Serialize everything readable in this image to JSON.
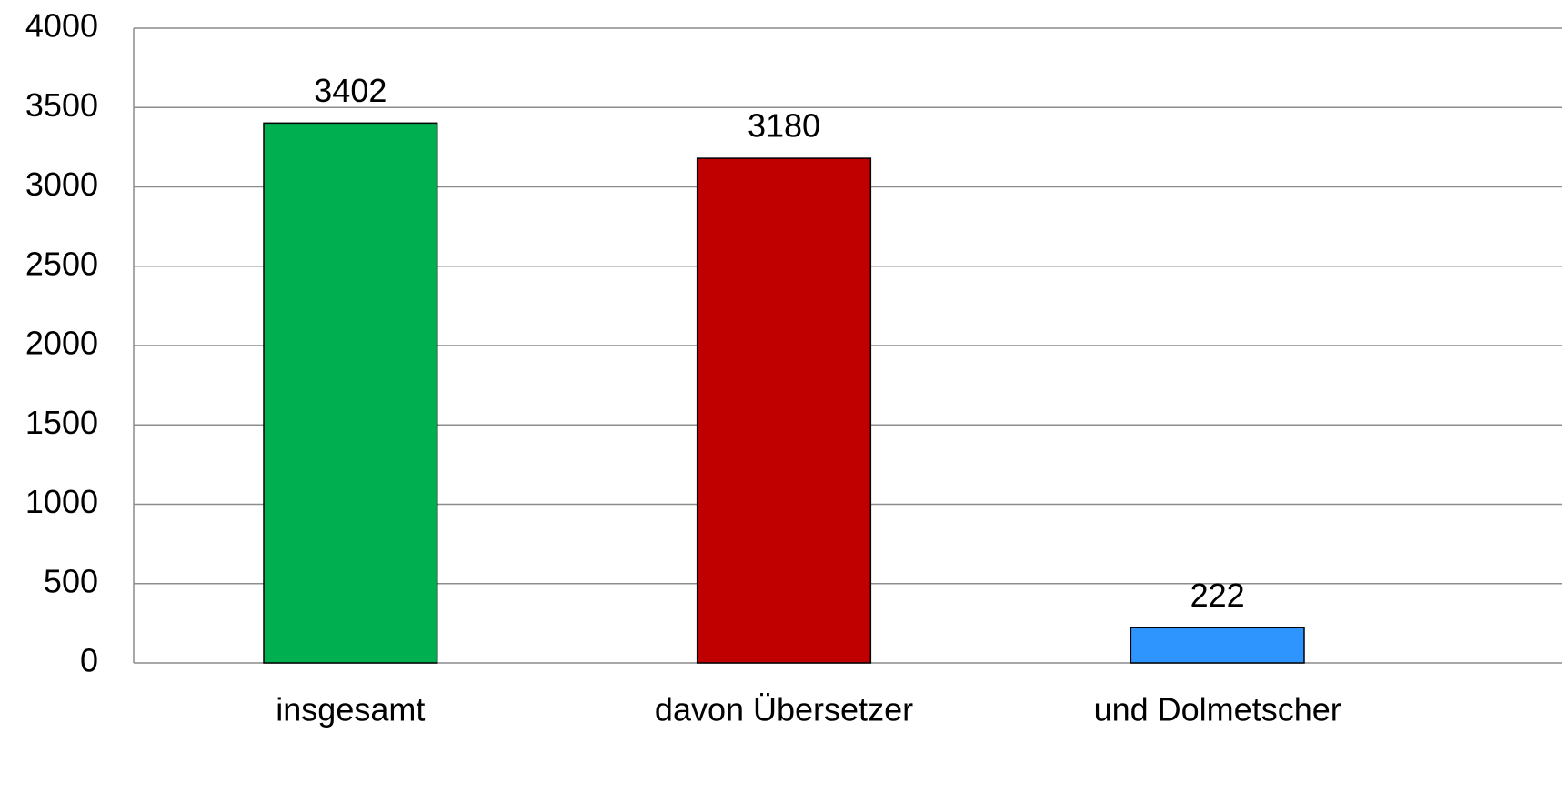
{
  "chart_data": {
    "type": "bar",
    "categories": [
      "insgesamt",
      "davon Übersetzer",
      "und Dolmetscher"
    ],
    "values": [
      3402,
      3180,
      222
    ],
    "colors": [
      "#00b050",
      "#c00000",
      "#2e95ff"
    ],
    "ylim": [
      0,
      4000
    ],
    "yticks": [
      0,
      500,
      1000,
      1500,
      2000,
      2500,
      3000,
      3500,
      4000
    ],
    "grid": true
  }
}
